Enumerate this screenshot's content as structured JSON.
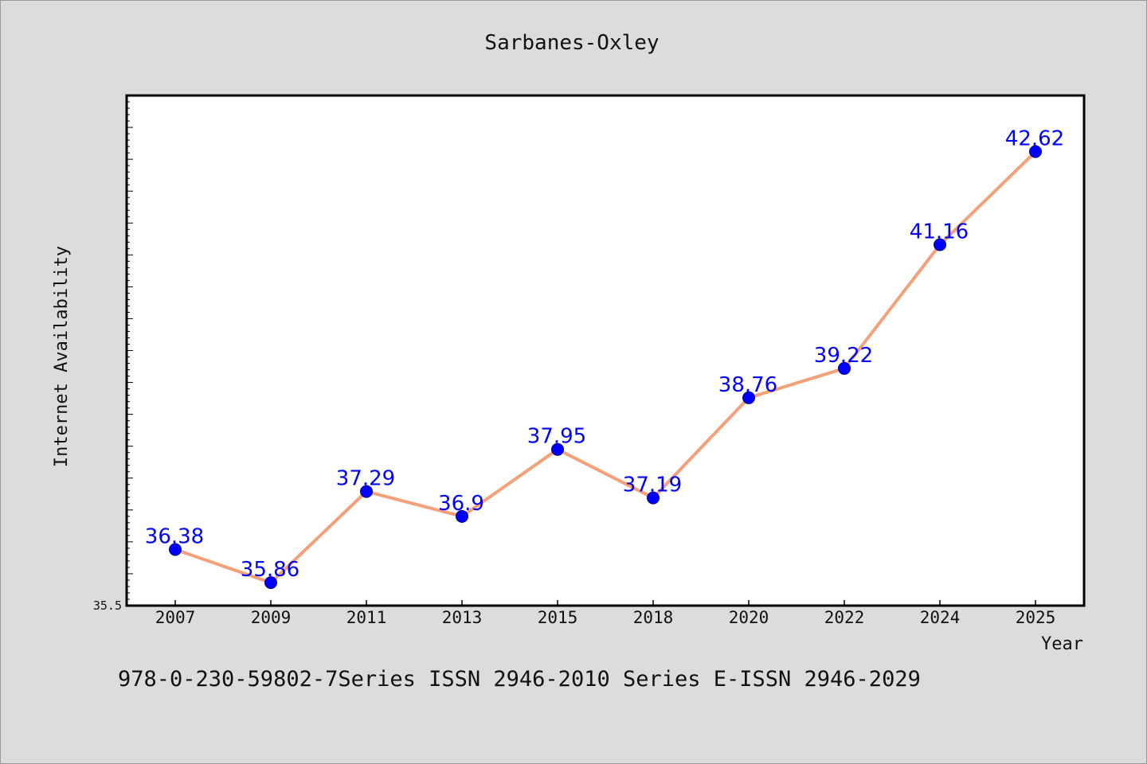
{
  "chart_data": {
    "type": "line",
    "title": "Sarbanes-Oxley",
    "xlabel": "Year",
    "ylabel": "Internet Availability",
    "categories": [
      "2007",
      "2009",
      "2011",
      "2013",
      "2015",
      "2018",
      "2020",
      "2022",
      "2024",
      "2025"
    ],
    "series": [
      {
        "values": [
          36.38,
          35.86,
          37.29,
          36.9,
          37.95,
          37.19,
          38.76,
          39.22,
          41.16,
          42.62
        ],
        "data_labels": [
          "36.38",
          "35.86",
          "37.29",
          "36.9",
          "37.95",
          "37.19",
          "38.76",
          "39.22",
          "41.16",
          "42.62"
        ]
      }
    ],
    "ylim": [
      35.5,
      43.5
    ],
    "ytick_labels": [
      "35.5"
    ],
    "grid": false,
    "line_color": "#f4a07a",
    "marker_color": "#0000ff"
  },
  "footer": {
    "text": "978-0-230-59802-7Series ISSN 2946-2010 Series E-ISSN 2946-2029"
  }
}
